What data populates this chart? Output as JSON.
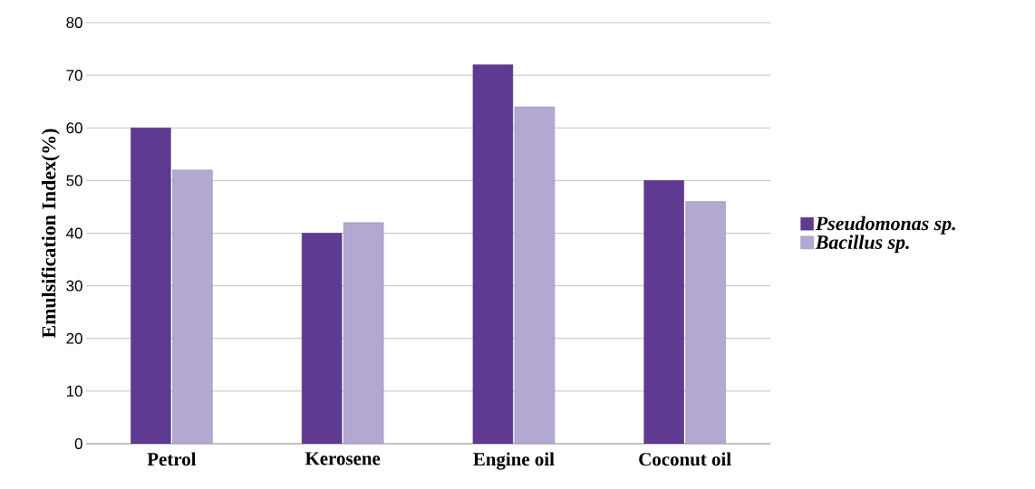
{
  "chart_data": {
    "type": "bar",
    "ylabel": "Emulsification Index(%)",
    "categories": [
      "Petrol",
      "Kerosene",
      "Engine oil",
      "Coconut oil"
    ],
    "series": [
      {
        "name": "Pseudomonas sp.",
        "color": "#5e3a92",
        "values": [
          60,
          40,
          72,
          50
        ]
      },
      {
        "name": "Bacillus sp.",
        "color": "#b3a8d2",
        "values": [
          52,
          42,
          64,
          46
        ]
      }
    ],
    "ylim": [
      0,
      80
    ],
    "yticks": [
      0,
      10,
      20,
      30,
      40,
      50,
      60,
      70,
      80
    ],
    "grid": "y",
    "legend": "right"
  }
}
